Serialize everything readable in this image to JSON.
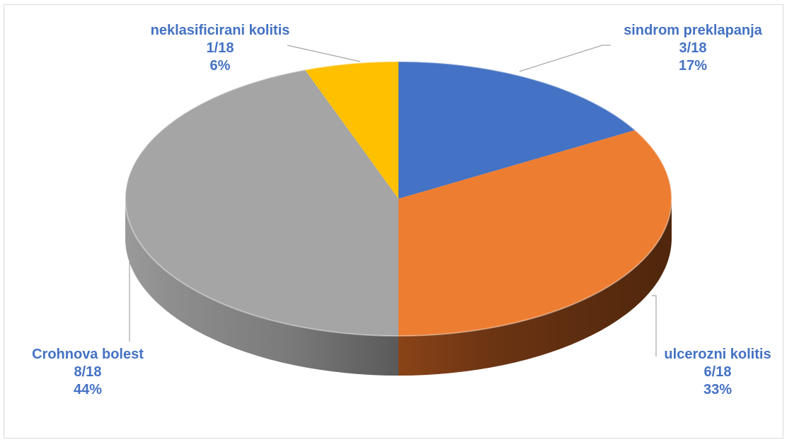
{
  "chart_data": {
    "type": "pie",
    "style": "3d",
    "total": 18,
    "label_color": "#4472c4",
    "slices": [
      {
        "name": "sindrom preklapanja",
        "count": 3,
        "fraction": "3/18",
        "percent": "17%",
        "color": "#4472c4"
      },
      {
        "name": "ulcerozni kolitis",
        "count": 6,
        "fraction": "6/18",
        "percent": "33%",
        "color": "#ed7d31"
      },
      {
        "name": "Crohnova bolest",
        "count": 8,
        "fraction": "8/18",
        "percent": "44%",
        "color": "#a5a5a5"
      },
      {
        "name": "neklasificirani kolitis",
        "count": 1,
        "fraction": "1/18",
        "percent": "6%",
        "color": "#ffc000"
      }
    ]
  }
}
